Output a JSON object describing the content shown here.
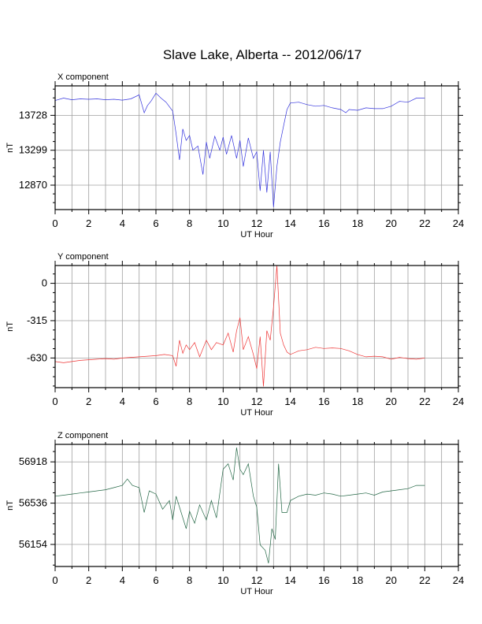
{
  "page": {
    "title": "Slave Lake, Alberta -- 2012/06/17"
  },
  "chart_data": [
    {
      "type": "line",
      "title": "X component",
      "xlabel": "UT Hour",
      "ylabel": "nT",
      "xlim": [
        0,
        24
      ],
      "ylim": [
        12570,
        14090
      ],
      "xticks": [
        0,
        2,
        4,
        6,
        8,
        10,
        12,
        14,
        16,
        18,
        20,
        22,
        24
      ],
      "yticks": [
        12870,
        13299,
        13728
      ],
      "grid": true,
      "color": "#3333dd",
      "series": [
        {
          "x": [
            0.0,
            0.5,
            1.0,
            1.5,
            2.0,
            2.5,
            3.0,
            3.5,
            4.0,
            4.5,
            5.0,
            5.3,
            5.5,
            5.7,
            6.0,
            6.3,
            6.6,
            7.0,
            7.2,
            7.4,
            7.6,
            7.8,
            8.0,
            8.2,
            8.5,
            8.8,
            9.0,
            9.2,
            9.5,
            9.8,
            10.0,
            10.2,
            10.5,
            10.8,
            11.0,
            11.2,
            11.5,
            11.8,
            12.0,
            12.2,
            12.4,
            12.6,
            12.8,
            13.0,
            13.2,
            13.4,
            13.6,
            13.8,
            14.0,
            14.5,
            15.0,
            15.5,
            16.0,
            16.5,
            17.0,
            17.3,
            17.5,
            18.0,
            18.5,
            19.0,
            19.5,
            20.0,
            20.5,
            21.0,
            21.5,
            22.0
          ],
          "y": [
            13910,
            13940,
            13920,
            13930,
            13925,
            13930,
            13920,
            13925,
            13915,
            13930,
            13980,
            13760,
            13850,
            13900,
            14000,
            13940,
            13890,
            13780,
            13500,
            13180,
            13560,
            13420,
            13480,
            13300,
            13350,
            13000,
            13400,
            13200,
            13470,
            13300,
            13460,
            13250,
            13480,
            13200,
            13420,
            13100,
            13450,
            13200,
            13280,
            12800,
            13300,
            12780,
            13280,
            12600,
            13100,
            13400,
            13600,
            13800,
            13880,
            13890,
            13860,
            13840,
            13850,
            13820,
            13800,
            13760,
            13800,
            13790,
            13820,
            13810,
            13810,
            13840,
            13900,
            13890,
            13940,
            13940
          ]
        }
      ]
    },
    {
      "type": "line",
      "title": "Y component",
      "xlabel": "UT Hour",
      "ylabel": "nT",
      "xlim": [
        0,
        24
      ],
      "ylim": [
        -880,
        150
      ],
      "xticks": [
        0,
        2,
        4,
        6,
        8,
        10,
        12,
        14,
        16,
        18,
        20,
        22,
        24
      ],
      "yticks": [
        -630,
        -315,
        0
      ],
      "grid": true,
      "color": "#ee3333",
      "series": [
        {
          "x": [
            0.0,
            0.5,
            1.0,
            1.5,
            2.0,
            2.5,
            3.0,
            3.5,
            4.0,
            4.5,
            5.0,
            5.5,
            6.0,
            6.5,
            7.0,
            7.2,
            7.4,
            7.6,
            7.8,
            8.0,
            8.3,
            8.6,
            9.0,
            9.3,
            9.6,
            10.0,
            10.3,
            10.6,
            10.8,
            11.0,
            11.2,
            11.5,
            11.8,
            12.0,
            12.2,
            12.4,
            12.6,
            12.8,
            13.0,
            13.2,
            13.4,
            13.6,
            13.8,
            14.0,
            14.5,
            15.0,
            15.5,
            16.0,
            16.5,
            17.0,
            17.5,
            18.0,
            18.5,
            19.0,
            19.5,
            20.0,
            20.5,
            21.0,
            21.5,
            22.0
          ],
          "y": [
            -660,
            -670,
            -660,
            -650,
            -645,
            -640,
            -635,
            -640,
            -630,
            -625,
            -620,
            -615,
            -610,
            -600,
            -610,
            -700,
            -480,
            -590,
            -520,
            -560,
            -500,
            -620,
            -480,
            -560,
            -500,
            -520,
            -420,
            -580,
            -400,
            -290,
            -560,
            -450,
            -600,
            -720,
            -450,
            -870,
            -400,
            -480,
            -200,
            150,
            -420,
            -520,
            -580,
            -600,
            -570,
            -560,
            -540,
            -550,
            -545,
            -550,
            -570,
            -600,
            -620,
            -615,
            -620,
            -640,
            -625,
            -635,
            -640,
            -630
          ]
        }
      ]
    },
    {
      "type": "line",
      "title": "Z component",
      "xlabel": "UT Hour",
      "ylabel": "nT",
      "xlim": [
        0,
        24
      ],
      "ylim": [
        55950,
        57080
      ],
      "xticks": [
        0,
        2,
        4,
        6,
        8,
        10,
        12,
        14,
        16,
        18,
        20,
        22,
        24
      ],
      "yticks": [
        56154,
        56536,
        56918
      ],
      "grid": true,
      "color": "#226644",
      "series": [
        {
          "x": [
            0.0,
            0.5,
            1.0,
            1.5,
            2.0,
            2.5,
            3.0,
            3.5,
            4.0,
            4.3,
            4.6,
            5.0,
            5.3,
            5.6,
            6.0,
            6.4,
            6.8,
            7.0,
            7.2,
            7.5,
            7.8,
            8.0,
            8.3,
            8.6,
            9.0,
            9.3,
            9.6,
            10.0,
            10.3,
            10.6,
            10.8,
            11.0,
            11.2,
            11.5,
            11.8,
            12.0,
            12.2,
            12.5,
            12.7,
            12.9,
            13.1,
            13.3,
            13.5,
            13.8,
            14.0,
            14.5,
            15.0,
            15.5,
            16.0,
            16.5,
            17.0,
            17.5,
            18.0,
            18.5,
            19.0,
            19.5,
            20.0,
            20.5,
            21.0,
            21.5,
            22.0
          ],
          "y": [
            56600,
            56610,
            56620,
            56630,
            56640,
            56650,
            56660,
            56680,
            56700,
            56760,
            56700,
            56680,
            56450,
            56650,
            56620,
            56480,
            56560,
            56380,
            56600,
            56450,
            56300,
            56460,
            56350,
            56520,
            56380,
            56560,
            56400,
            56850,
            56900,
            56750,
            57050,
            56850,
            56800,
            56900,
            56600,
            56500,
            56150,
            56100,
            55980,
            56300,
            56200,
            56900,
            56450,
            56450,
            56560,
            56600,
            56620,
            56610,
            56630,
            56620,
            56600,
            56610,
            56620,
            56630,
            56610,
            56640,
            56650,
            56660,
            56670,
            56700,
            56700
          ]
        }
      ]
    }
  ]
}
